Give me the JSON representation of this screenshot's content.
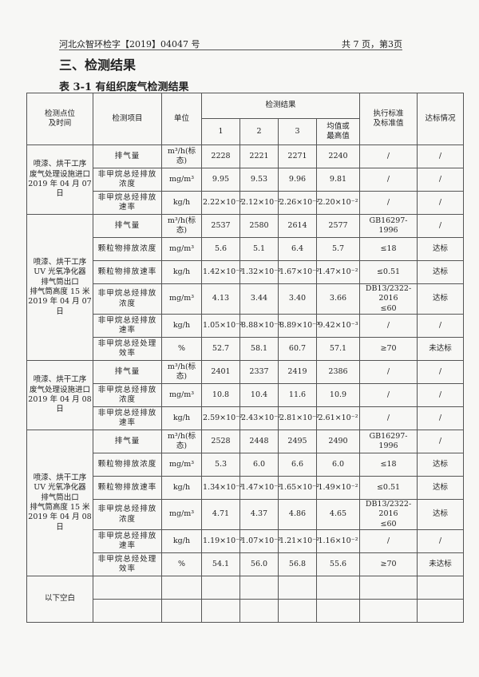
{
  "header": {
    "report_no": "河北众智环检字【2019】04047 号",
    "page": "共 7 页，第3页"
  },
  "section_title": "三、检测结果",
  "table_caption": "表 3-1 有组织废气检测结果",
  "table": {
    "headers": {
      "location": "检测点位\n及时间",
      "item": "检测项目",
      "unit": "单位",
      "results": "检测结果",
      "r1": "1",
      "r2": "2",
      "r3": "3",
      "avg": "均值或\n最高值",
      "standard": "执行标准\n及标准值",
      "status": "达标情况"
    },
    "groups": [
      {
        "location": "喷漆、烘干工序\n废气处理设施进口\n2019 年 04 月 07 日",
        "rows": [
          {
            "item": "排气量",
            "unit": "m³/h(标态)",
            "v": [
              "2228",
              "2221",
              "2271",
              "2240"
            ],
            "std": "/",
            "status": "/"
          },
          {
            "item": "非甲烷总烃排放浓度",
            "unit": "mg/m³",
            "v": [
              "9.95",
              "9.53",
              "9.96",
              "9.81"
            ],
            "std": "/",
            "status": "/"
          },
          {
            "item": "非甲烷总烃排放速率",
            "unit": "kg/h",
            "v": [
              "2.22×10⁻²",
              "2.12×10⁻²",
              "2.26×10⁻²",
              "2.20×10⁻²"
            ],
            "std": "/",
            "status": "/"
          }
        ]
      },
      {
        "location": "喷漆、烘干工序\nUV 光氧净化器\n排气筒出口\n排气筒高度 15 米\n2019 年 04 月 07 日",
        "rows": [
          {
            "item": "排气量",
            "unit": "m³/h(标态)",
            "v": [
              "2537",
              "2580",
              "2614",
              "2577"
            ],
            "std": "GB16297-1996",
            "status": "/"
          },
          {
            "item": "颗粒物排放浓度",
            "unit": "mg/m³",
            "v": [
              "5.6",
              "5.1",
              "6.4",
              "5.7"
            ],
            "std": "≤18",
            "status": "达标"
          },
          {
            "item": "颗粒物排放速率",
            "unit": "kg/h",
            "v": [
              "1.42×10⁻²",
              "1.32×10⁻²",
              "1.67×10⁻²",
              "1.47×10⁻²"
            ],
            "std": "≤0.51",
            "status": "达标"
          },
          {
            "item": "非甲烷总烃排放浓度",
            "unit": "mg/m³",
            "v": [
              "4.13",
              "3.44",
              "3.40",
              "3.66"
            ],
            "std": "DB13/2322-2016\n≤60",
            "status": "达标"
          },
          {
            "item": "非甲烷总烃排放速率",
            "unit": "kg/h",
            "v": [
              "1.05×10⁻²",
              "8.88×10⁻³",
              "8.89×10⁻³",
              "9.42×10⁻³"
            ],
            "std": "/",
            "status": "/"
          },
          {
            "item": "非甲烷总烃处理效率",
            "unit": "%",
            "v": [
              "52.7",
              "58.1",
              "60.7",
              "57.1"
            ],
            "std": "≥70",
            "status": "未达标"
          }
        ]
      },
      {
        "location": "喷漆、烘干工序\n废气处理设施进口\n2019 年 04 月 08 日",
        "rows": [
          {
            "item": "排气量",
            "unit": "m³/h(标态)",
            "v": [
              "2401",
              "2337",
              "2419",
              "2386"
            ],
            "std": "/",
            "status": "/"
          },
          {
            "item": "非甲烷总烃排放浓度",
            "unit": "mg/m³",
            "v": [
              "10.8",
              "10.4",
              "11.6",
              "10.9"
            ],
            "std": "/",
            "status": "/"
          },
          {
            "item": "非甲烷总烃排放速率",
            "unit": "kg/h",
            "v": [
              "2.59×10⁻²",
              "2.43×10⁻²",
              "2.81×10⁻²",
              "2.61×10⁻²"
            ],
            "std": "/",
            "status": "/"
          }
        ]
      },
      {
        "location": "喷漆、烘干工序\nUV 光氧净化器\n排气筒出口\n排气筒高度 15 米\n2019 年 04 月 08 日",
        "rows": [
          {
            "item": "排气量",
            "unit": "m³/h(标态)",
            "v": [
              "2528",
              "2448",
              "2495",
              "2490"
            ],
            "std": "GB16297-1996",
            "status": "/"
          },
          {
            "item": "颗粒物排放浓度",
            "unit": "mg/m³",
            "v": [
              "5.3",
              "6.0",
              "6.6",
              "6.0"
            ],
            "std": "≤18",
            "status": "达标"
          },
          {
            "item": "颗粒物排放速率",
            "unit": "kg/h",
            "v": [
              "1.34×10⁻²",
              "1.47×10⁻²",
              "1.65×10⁻²",
              "1.49×10⁻²"
            ],
            "std": "≤0.51",
            "status": "达标"
          },
          {
            "item": "非甲烷总烃排放浓度",
            "unit": "mg/m³",
            "v": [
              "4.71",
              "4.37",
              "4.86",
              "4.65"
            ],
            "std": "DB13/2322-2016\n≤60",
            "status": "达标"
          },
          {
            "item": "非甲烷总烃排放速率",
            "unit": "kg/h",
            "v": [
              "1.19×10⁻²",
              "1.07×10⁻²",
              "1.21×10⁻²",
              "1.16×10⁻²"
            ],
            "std": "/",
            "status": "/"
          },
          {
            "item": "非甲烷总烃处理效率",
            "unit": "%",
            "v": [
              "54.1",
              "56.0",
              "56.8",
              "55.6"
            ],
            "std": "≥70",
            "status": "未达标"
          }
        ]
      }
    ],
    "blank_note": "以下空白"
  }
}
